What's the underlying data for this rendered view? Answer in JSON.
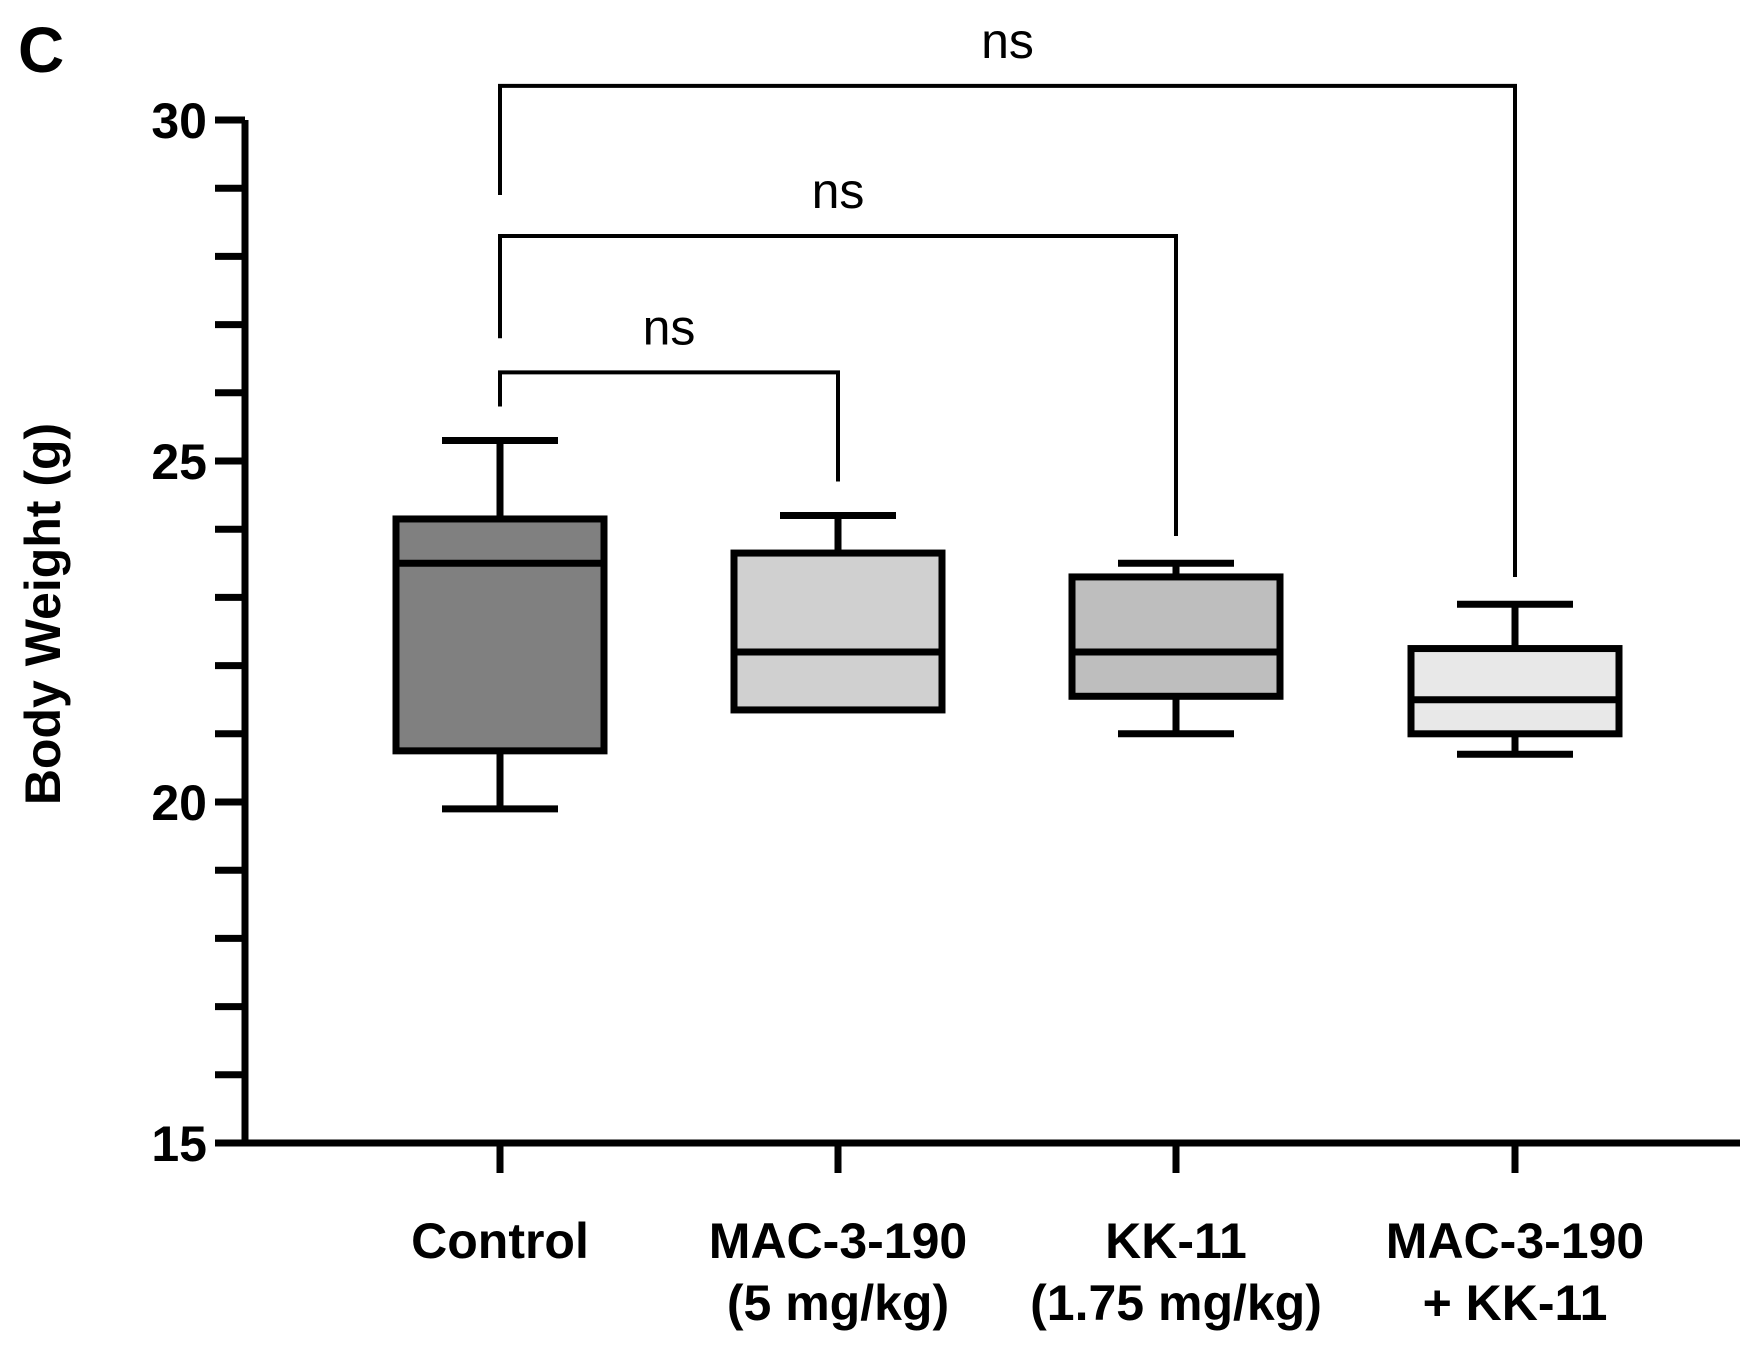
{
  "panel_label": "C",
  "chart_data": {
    "type": "box",
    "ylabel": "Body Weight (g)",
    "xlabel": "",
    "ylim": [
      15,
      30
    ],
    "yticks": [
      15,
      20,
      25,
      30
    ],
    "categories": [
      {
        "lines": [
          "Control"
        ]
      },
      {
        "lines": [
          "MAC-3-190",
          "(5 mg/kg)"
        ]
      },
      {
        "lines": [
          "KK-11",
          "(1.75 mg/kg)"
        ]
      },
      {
        "lines": [
          "MAC-3-190",
          "+ KK-11"
        ]
      }
    ],
    "boxes": [
      {
        "name": "Control",
        "min": 19.9,
        "q1": 20.75,
        "median": 23.5,
        "q3": 24.15,
        "max": 25.3,
        "color": "#808080"
      },
      {
        "name": "MAC-3-190 (5 mg/kg)",
        "min": 21.35,
        "q1": 21.35,
        "median": 22.2,
        "q3": 23.65,
        "max": 24.2,
        "color": "#d0d0d0"
      },
      {
        "name": "KK-11 (1.75 mg/kg)",
        "min": 21.0,
        "q1": 21.55,
        "median": 22.2,
        "q3": 23.3,
        "max": 23.5,
        "color": "#bebebe"
      },
      {
        "name": "MAC-3-190 + KK-11",
        "min": 20.7,
        "q1": 21.0,
        "median": 21.5,
        "q3": 22.25,
        "max": 22.9,
        "color": "#e8e8e8"
      }
    ],
    "comparisons": [
      {
        "from": 0,
        "to": 1,
        "label": "ns",
        "bar_y": 26.3,
        "left_end": 25.8,
        "right_end": 24.7
      },
      {
        "from": 0,
        "to": 2,
        "label": "ns",
        "bar_y": 28.3,
        "left_end": 26.8,
        "right_end": 23.9
      },
      {
        "from": 0,
        "to": 3,
        "label": "ns",
        "bar_y": 30.5,
        "left_end": 28.9,
        "right_end": 23.3
      }
    ]
  }
}
